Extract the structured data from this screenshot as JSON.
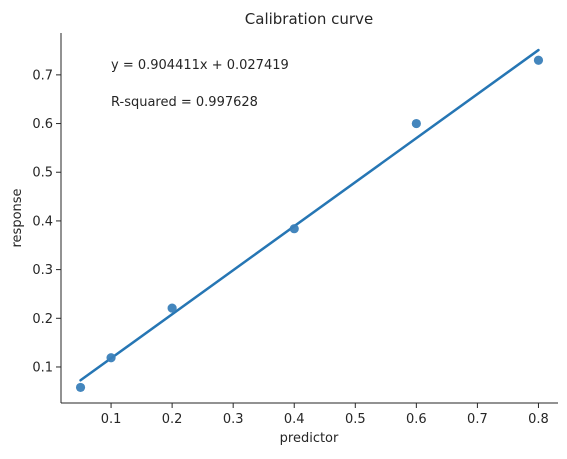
{
  "chart_data": {
    "type": "scatter",
    "title": "Calibration curve",
    "xlabel": "predictor",
    "ylabel": "response",
    "xlim": [
      0.018,
      0.832
    ],
    "ylim": [
      0.026,
      0.786
    ],
    "xticks": [
      0.1,
      0.2,
      0.3,
      0.4,
      0.5,
      0.6,
      0.7,
      0.8
    ],
    "xtick_labels": [
      "0.1",
      "0.2",
      "0.3",
      "0.4",
      "0.5",
      "0.6",
      "0.7",
      "0.8"
    ],
    "yticks": [
      0.1,
      0.2,
      0.3,
      0.4,
      0.5,
      0.6,
      0.7
    ],
    "ytick_labels": [
      "0.1",
      "0.2",
      "0.3",
      "0.4",
      "0.5",
      "0.6",
      "0.7"
    ],
    "points": {
      "x": [
        0.05,
        0.1,
        0.2,
        0.4,
        0.6,
        0.8
      ],
      "y": [
        0.058,
        0.119,
        0.221,
        0.384,
        0.6,
        0.73
      ]
    },
    "fit_line": {
      "slope": 0.904411,
      "intercept": 0.027419,
      "x_range": [
        0.05,
        0.8
      ]
    },
    "annotations": {
      "equation": "y =  0.904411x +  0.027419",
      "r_squared": "R-squared =  0.997628"
    },
    "colors": {
      "point": "#3a80b9",
      "line": "#2676b4",
      "axis": "#262626"
    },
    "grid": false,
    "legend": "none"
  }
}
